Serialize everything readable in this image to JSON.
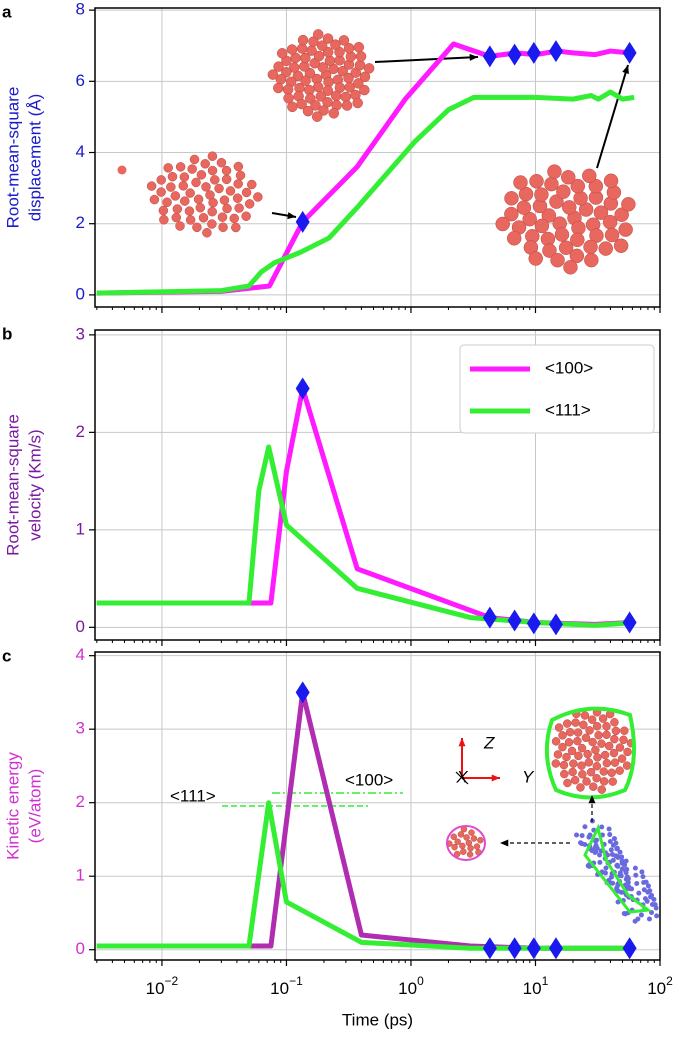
{
  "chart_data": [
    {
      "type": "line",
      "panel_label": "a",
      "ylabel": [
        "Root-mean-square",
        "displacement (Å)"
      ],
      "label_color": "#1a1acc",
      "xscale": "log",
      "xlim": [
        0.0029,
        100
      ],
      "xticks": [
        0.01,
        0.1,
        1,
        10,
        100
      ],
      "ylim": [
        -0.34,
        8.06
      ],
      "yticks": [
        0,
        2,
        4,
        6,
        8
      ],
      "grid": true,
      "series": [
        {
          "color": "#ff1aff",
          "x": [
            0.003,
            0.03,
            0.073,
            0.135,
            0.37,
            0.9,
            2.2,
            4.3,
            7,
            10,
            15,
            20,
            30,
            40,
            57
          ],
          "values": [
            0.05,
            0.1,
            0.25,
            2.05,
            3.6,
            5.5,
            7.05,
            6.7,
            6.8,
            6.75,
            6.85,
            6.8,
            6.75,
            6.85,
            6.8
          ]
        },
        {
          "color": "#33ee33",
          "x": [
            0.003,
            0.03,
            0.05,
            0.063,
            0.08,
            0.13,
            0.22,
            0.38,
            1.07,
            2.0,
            3.2,
            10,
            20,
            28,
            32,
            40,
            50,
            62
          ],
          "values": [
            0.05,
            0.12,
            0.25,
            0.65,
            0.9,
            1.2,
            1.6,
            2.5,
            4.3,
            5.2,
            5.55,
            5.55,
            5.5,
            5.6,
            5.5,
            5.7,
            5.5,
            5.55
          ]
        }
      ],
      "markers": {
        "color": "#1a1aee",
        "x": [
          0.135,
          4.3,
          6.8,
          9.7,
          14.6,
          57
        ],
        "values": [
          2.05,
          6.7,
          6.75,
          6.8,
          6.85,
          6.8
        ]
      }
    },
    {
      "type": "line",
      "panel_label": "b",
      "ylabel": [
        "Root-mean-square",
        "velocity (Km/s)"
      ],
      "label_color": "#7a1aa0",
      "xscale": "log",
      "xlim": [
        0.0029,
        100
      ],
      "xticks": [
        0.01,
        0.1,
        1,
        10,
        100
      ],
      "ylim": [
        -0.13,
        3.05
      ],
      "yticks": [
        0,
        1,
        2,
        3
      ],
      "grid": true,
      "legend": "upper right",
      "series": [
        {
          "name": "<100>",
          "color": "#ff1aff",
          "x": [
            0.003,
            0.075,
            0.1,
            0.135,
            0.37,
            4.3,
            10,
            30,
            57
          ],
          "values": [
            0.25,
            0.25,
            1.6,
            2.45,
            0.6,
            0.1,
            0.05,
            0.03,
            0.05
          ]
        },
        {
          "name": "<111>",
          "color": "#33ee33",
          "x": [
            0.003,
            0.05,
            0.06,
            0.072,
            0.1,
            0.37,
            3,
            10,
            30,
            62
          ],
          "values": [
            0.25,
            0.25,
            1.4,
            1.85,
            1.05,
            0.4,
            0.1,
            0.05,
            0.02,
            0.05
          ]
        }
      ],
      "markers": {
        "color": "#1a1aee",
        "x": [
          0.135,
          4.3,
          6.8,
          9.7,
          14.6,
          57
        ],
        "values": [
          2.45,
          0.1,
          0.07,
          0.04,
          0.03,
          0.05
        ]
      }
    },
    {
      "type": "line",
      "panel_label": "c",
      "ylabel": [
        "Kinetic energy",
        "(eV/atom)"
      ],
      "label_color": "#d030d0",
      "xlabel": "Time (ps)",
      "xscale": "log",
      "xlim": [
        0.0029,
        100
      ],
      "xticks": [
        {
          "value": 0.01,
          "label": "10",
          "sup": "−2"
        },
        {
          "value": 0.1,
          "label": "10",
          "sup": "−1"
        },
        {
          "value": 1,
          "label": "10",
          "sup": "0"
        },
        {
          "value": 10,
          "label": "10",
          "sup": "1"
        },
        {
          "value": 100,
          "label": "10",
          "sup": "2"
        }
      ],
      "ylim": [
        -0.14,
        4.05
      ],
      "yticks": [
        0,
        1,
        2,
        3,
        4
      ],
      "grid": true,
      "series": [
        {
          "color": "#b02cb0",
          "x": [
            0.003,
            0.075,
            0.135,
            0.4,
            3,
            10,
            62
          ],
          "values": [
            0.05,
            0.05,
            3.5,
            0.2,
            0.05,
            0.02,
            0.02
          ]
        },
        {
          "color": "#33ee33",
          "x": [
            0.003,
            0.05,
            0.072,
            0.1,
            0.4,
            3,
            10,
            62
          ],
          "values": [
            0.05,
            0.05,
            2.0,
            0.65,
            0.1,
            0.02,
            0.02,
            0.02
          ]
        }
      ],
      "markers": {
        "color": "#1a1aee",
        "x": [
          0.135,
          4.3,
          6.8,
          9.7,
          14.6,
          57
        ],
        "values": [
          3.5,
          0.02,
          0.02,
          0.02,
          0.02,
          0.02
        ]
      },
      "annotations": [
        {
          "text": "<111>"
        },
        {
          "text": "<100>"
        },
        {
          "text": "Z"
        },
        {
          "text": "X"
        },
        {
          "text": "Y"
        }
      ]
    }
  ]
}
